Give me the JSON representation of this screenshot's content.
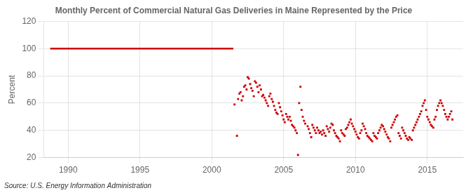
{
  "chart_data": {
    "type": "scatter",
    "title": "Monthly Percent of Commercial Natural Gas Deliveries in Maine Represented by the Price",
    "ylabel": "Percent",
    "annotations": [
      "Source: U.S. Energy Information Administration"
    ],
    "xlim": [
      1988.3,
      2017.5
    ],
    "xticks": [
      1990,
      1995,
      2000,
      2005,
      2010,
      2015
    ],
    "ylim": [
      20,
      120
    ],
    "yticks": [
      20,
      40,
      60,
      80,
      100,
      120
    ],
    "grid": true,
    "series": [
      {
        "type": "line",
        "color": "#cc0000",
        "line_style": "solid",
        "x": [
          1988.75,
          2001.5
        ],
        "values": [
          100,
          100
        ]
      },
      {
        "type": "scatter",
        "color": "#cc0000",
        "marker": "square",
        "x": [
          2001.58,
          2001.75,
          2001.83,
          2001.92,
          2002.0,
          2002.08,
          2002.17,
          2002.25,
          2002.33,
          2002.42,
          2002.5,
          2002.58,
          2002.67,
          2002.75,
          2002.83,
          2002.92,
          2003.0,
          2003.08,
          2003.17,
          2003.25,
          2003.33,
          2003.42,
          2003.5,
          2003.58,
          2003.67,
          2003.75,
          2003.83,
          2003.92,
          2004.0,
          2004.08,
          2004.17,
          2004.25,
          2004.33,
          2004.42,
          2004.5,
          2004.58,
          2004.67,
          2004.75,
          2004.83,
          2004.92,
          2005.0,
          2005.08,
          2005.17,
          2005.25,
          2005.33,
          2005.42,
          2005.5,
          2005.58,
          2005.67,
          2005.75,
          2005.83,
          2005.92,
          2006.0,
          2006.08,
          2006.17,
          2006.25,
          2006.33,
          2006.42,
          2006.5,
          2006.67,
          2006.75,
          2006.83,
          2006.92,
          2007.0,
          2007.08,
          2007.17,
          2007.25,
          2007.33,
          2007.42,
          2007.5,
          2007.58,
          2007.67,
          2007.75,
          2007.83,
          2007.92,
          2008.0,
          2008.08,
          2008.17,
          2008.25,
          2008.33,
          2008.42,
          2008.5,
          2008.58,
          2008.67,
          2008.75,
          2008.83,
          2008.92,
          2009.0,
          2009.08,
          2009.17,
          2009.25,
          2009.33,
          2009.42,
          2009.5,
          2009.58,
          2009.67,
          2009.75,
          2009.83,
          2009.92,
          2010.0,
          2010.08,
          2010.17,
          2010.25,
          2010.33,
          2010.42,
          2010.5,
          2010.58,
          2010.67,
          2010.75,
          2010.83,
          2010.92,
          2011.0,
          2011.08,
          2011.17,
          2011.25,
          2011.33,
          2011.42,
          2011.5,
          2011.58,
          2011.67,
          2011.75,
          2011.83,
          2011.92,
          2012.0,
          2012.08,
          2012.17,
          2012.25,
          2012.33,
          2012.42,
          2012.5,
          2012.58,
          2012.67,
          2012.75,
          2012.83,
          2012.92,
          2013.0,
          2013.08,
          2013.17,
          2013.25,
          2013.33,
          2013.42,
          2013.5,
          2013.58,
          2013.67,
          2013.75,
          2013.83,
          2013.92,
          2014.0,
          2014.08,
          2014.17,
          2014.25,
          2014.33,
          2014.42,
          2014.5,
          2014.58,
          2014.67,
          2014.75,
          2014.83,
          2014.92,
          2015.0,
          2015.08,
          2015.17,
          2015.25,
          2015.33,
          2015.42,
          2015.5,
          2015.58,
          2015.67,
          2015.75,
          2015.83,
          2015.92,
          2016.0,
          2016.08,
          2016.17,
          2016.25,
          2016.33,
          2016.42,
          2016.5,
          2016.58,
          2016.67,
          2016.75
        ],
        "values": [
          59,
          36,
          63,
          67,
          68,
          62,
          65,
          72,
          73,
          70,
          79,
          78,
          74,
          71,
          69,
          65,
          76,
          75,
          72,
          68,
          73,
          70,
          65,
          66,
          64,
          62,
          60,
          58,
          65,
          67,
          63,
          61,
          58,
          55,
          53,
          52,
          60,
          57,
          54,
          51,
          48,
          46,
          52,
          50,
          48,
          50,
          47,
          44,
          43,
          42,
          40,
          38,
          22,
          60,
          72,
          55,
          50,
          47,
          45,
          43,
          41,
          38,
          35,
          44,
          42,
          40,
          38,
          42,
          40,
          38,
          39,
          37,
          40,
          38,
          36,
          43,
          41,
          39,
          42,
          45,
          44,
          40,
          38,
          36,
          35,
          34,
          32,
          40,
          38,
          37,
          36,
          41,
          42,
          44,
          46,
          48,
          45,
          43,
          41,
          39,
          37,
          35,
          34,
          38,
          40,
          45,
          43,
          41,
          38,
          36,
          35,
          34,
          33,
          32,
          38,
          36,
          35,
          34,
          38,
          40,
          42,
          44,
          43,
          41,
          39,
          37,
          35,
          34,
          32,
          42,
          44,
          46,
          48,
          50,
          51,
          38,
          36,
          34,
          42,
          40,
          38,
          36,
          34,
          33,
          35,
          34,
          33,
          40,
          42,
          44,
          46,
          48,
          50,
          52,
          54,
          58,
          60,
          62,
          55,
          50,
          48,
          46,
          44,
          43,
          42,
          48,
          50,
          55,
          58,
          60,
          62,
          60,
          58,
          55,
          52,
          50,
          48,
          50,
          52,
          54,
          48
        ]
      }
    ],
    "legend": false
  }
}
